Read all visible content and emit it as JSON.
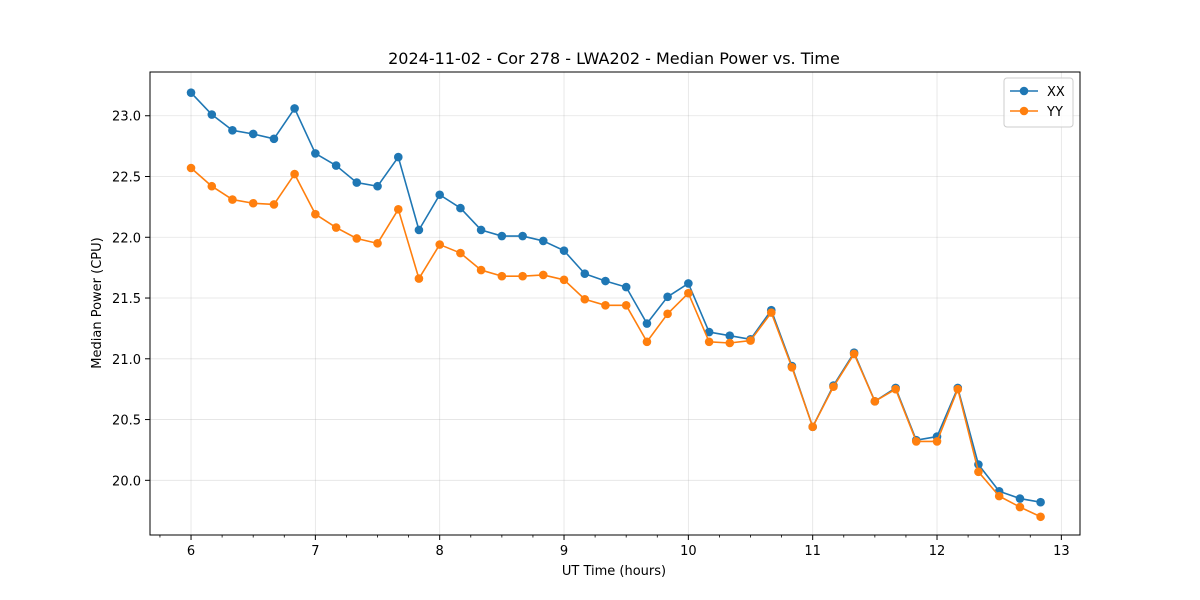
{
  "chart_data": {
    "type": "line",
    "title": "2024-11-02 - Cor 278 - LWA202 - Median Power vs. Time",
    "xlabel": "UT Time (hours)",
    "ylabel": "Median Power (CPU)",
    "xlim": [
      5.67,
      13.15
    ],
    "ylim": [
      19.55,
      23.36
    ],
    "xticks": [
      6,
      7,
      8,
      9,
      10,
      11,
      12,
      13
    ],
    "yticks": [
      20.0,
      20.5,
      21.0,
      21.5,
      22.0,
      22.5,
      23.0
    ],
    "grid": true,
    "legend_position": "top-right",
    "x": [
      6.0,
      6.167,
      6.333,
      6.5,
      6.667,
      6.833,
      7.0,
      7.167,
      7.333,
      7.5,
      7.667,
      7.833,
      8.0,
      8.167,
      8.333,
      8.5,
      8.667,
      8.833,
      9.0,
      9.167,
      9.333,
      9.5,
      9.667,
      9.833,
      10.0,
      10.167,
      10.333,
      10.5,
      10.667,
      10.833,
      11.0,
      11.167,
      11.333,
      11.5,
      11.667,
      11.833,
      12.0,
      12.167,
      12.333,
      12.5,
      12.667,
      12.833
    ],
    "series": [
      {
        "name": "XX",
        "color": "#1f77b4",
        "values": [
          23.19,
          23.01,
          22.88,
          22.85,
          22.81,
          23.06,
          22.69,
          22.59,
          22.45,
          22.42,
          22.66,
          22.06,
          22.35,
          22.24,
          22.06,
          22.01,
          22.01,
          21.97,
          21.89,
          21.7,
          21.64,
          21.59,
          21.29,
          21.51,
          21.62,
          21.22,
          21.19,
          21.16,
          21.4,
          20.94,
          20.44,
          20.78,
          21.05,
          20.65,
          20.76,
          20.33,
          20.36,
          20.76,
          20.13,
          19.91,
          19.85,
          19.82
        ]
      },
      {
        "name": "YY",
        "color": "#ff7f0e",
        "values": [
          22.57,
          22.42,
          22.31,
          22.28,
          22.27,
          22.52,
          22.19,
          22.08,
          21.99,
          21.95,
          22.23,
          21.66,
          21.94,
          21.87,
          21.73,
          21.68,
          21.68,
          21.69,
          21.65,
          21.49,
          21.44,
          21.44,
          21.14,
          21.37,
          21.54,
          21.14,
          21.13,
          21.15,
          21.38,
          20.93,
          20.44,
          20.77,
          21.04,
          20.65,
          20.75,
          20.32,
          20.32,
          20.75,
          20.07,
          19.87,
          19.78,
          19.7
        ]
      }
    ]
  }
}
